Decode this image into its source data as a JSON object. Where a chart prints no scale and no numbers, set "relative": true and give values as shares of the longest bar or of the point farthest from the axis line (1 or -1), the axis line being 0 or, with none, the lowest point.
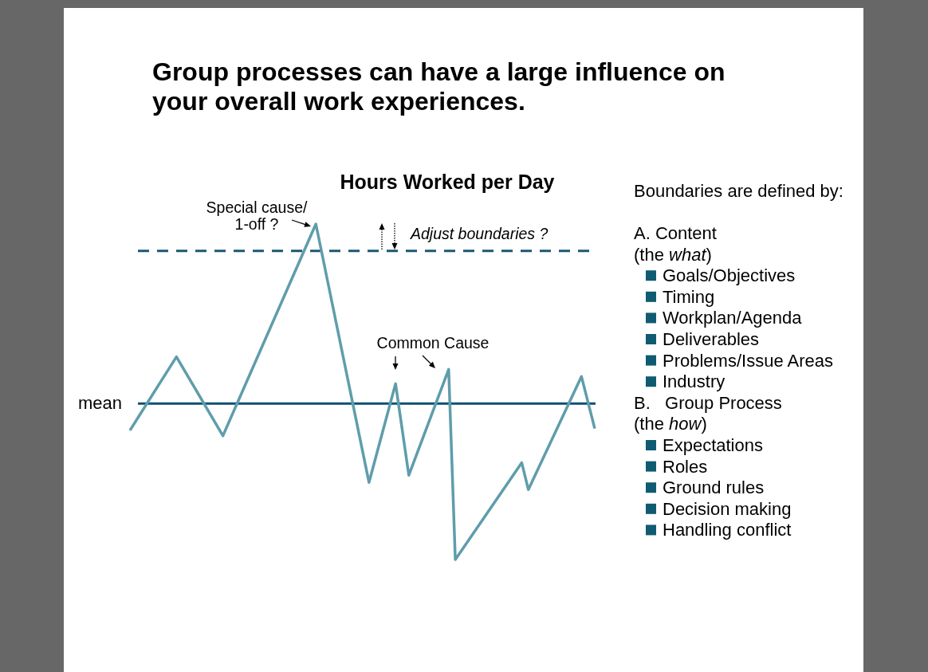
{
  "chart_data": [
    {
      "type": "line",
      "title": "Group processes can have a large influence on your overall work experiences.",
      "subtitle": "Hours Worked per Day",
      "relative": true,
      "categories": [
        null,
        null,
        null,
        null,
        null,
        null,
        null,
        null,
        null,
        null,
        null,
        null,
        null,
        null,
        null,
        null,
        null,
        null,
        null,
        null,
        null,
        null,
        null,
        null,
        null,
        null,
        null,
        null,
        null,
        null,
        null,
        null,
        null,
        null,
        null,
        null,
        null,
        null,
        null,
        null,
        null,
        null,
        null,
        null,
        null,
        null,
        null,
        null,
        null,
        null,
        null,
        null,
        null,
        null,
        null,
        null,
        null,
        null,
        null,
        null,
        null,
        null,
        null,
        null,
        null,
        null,
        null,
        null,
        null,
        null,
        null
      ],
      "series": [
        {
          "color": "#5f9dab",
          "values": [
            -0.15,
            null,
            null,
            null,
            null,
            null,
            null,
            0.26,
            null,
            null,
            null,
            null,
            null,
            null,
            -0.18,
            null,
            null,
            null,
            null,
            null,
            null,
            null,
            null,
            null,
            null,
            null,
            null,
            null,
            1,
            null,
            null,
            null,
            null,
            null,
            null,
            null,
            -0.44,
            null,
            null,
            null,
            0.11,
            null,
            -0.4,
            null,
            null,
            null,
            null,
            null,
            0.19,
            -0.87,
            null,
            null,
            null,
            null,
            null,
            null,
            null,
            null,
            null,
            -0.33,
            -0.48,
            null,
            null,
            null,
            null,
            null,
            null,
            null,
            0.15,
            null,
            -0.14
          ]
        }
      ],
      "ref_lines": [
        {
          "axis": "y",
          "value": 0,
          "label": "mean",
          "color": "#0d5170",
          "line_style": "solid"
        },
        {
          "axis": "y",
          "value": 0.85,
          "color": "#1b5872",
          "line_style": "dashed"
        }
      ],
      "annotations": [
        "Special cause/ 1-off ?",
        "Adjust boundaries ?",
        "Common Cause"
      ]
    },
    {
      "type": "other",
      "title": "Boundaries are defined by:",
      "annotations": [
        "A. Content",
        "(the what)",
        "Goals/Objectives",
        "Timing",
        "Workplan/Agenda",
        "Deliverables",
        "Problems/Issue Areas",
        "Industry",
        "B.   Group Process",
        "(the how)",
        "Expectations",
        "Roles",
        "Ground rules",
        "Decision making",
        "Handling conflict"
      ]
    }
  ]
}
